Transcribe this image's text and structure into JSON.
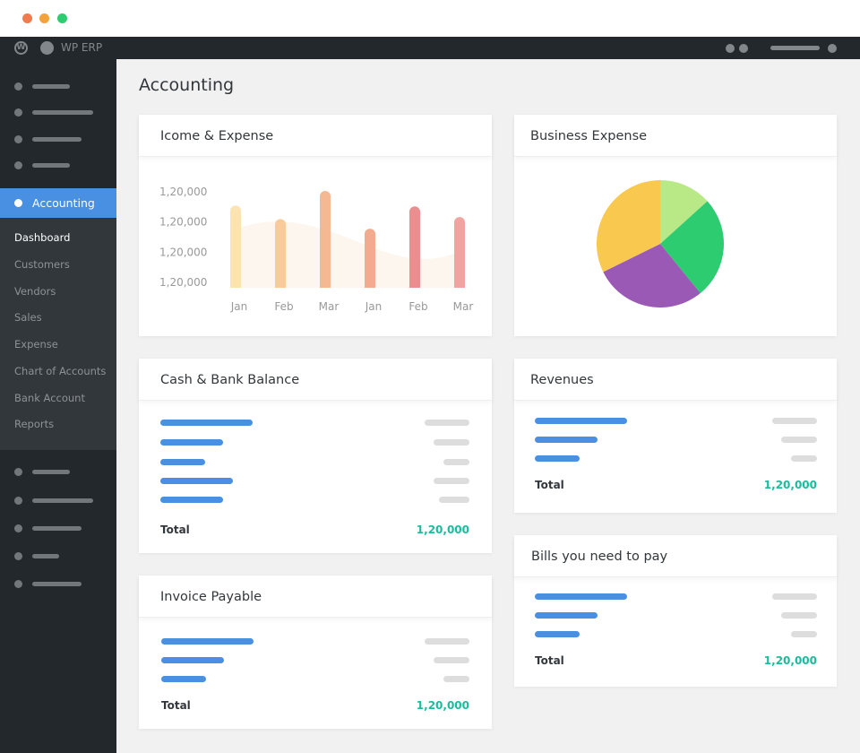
{
  "window": {
    "controls": [
      "close",
      "minimize",
      "maximize"
    ],
    "colors": {
      "close": "#f07b4f",
      "minimize": "#f2a33a",
      "maximize": "#2ecc71"
    }
  },
  "adminbar": {
    "brand": "WP ERP",
    "icons": [
      "wordpress-icon",
      "wperp-icon"
    ]
  },
  "sidebar": {
    "active": "Accounting",
    "active_color": "#4a90e2",
    "submenu": [
      "Dashboard",
      "Customers",
      "Vendors",
      "Sales",
      "Expense",
      "Chart of Accounts",
      "Bank Account",
      "Reports"
    ],
    "current_submenu": "Dashboard"
  },
  "page": {
    "title": "Accounting"
  },
  "cards": {
    "income": {
      "title": "Icome & Expense"
    },
    "business": {
      "title": "Business Expense"
    },
    "cash": {
      "title": "Cash & Bank Balance",
      "total_label": "Total",
      "total_value": "1,20,000"
    },
    "invoice": {
      "title": "Invoice Payable",
      "total_label": "Total",
      "total_value": "1,20,000"
    },
    "revenues": {
      "title": "Revenues",
      "total_label": "Total",
      "total_value": "1,20,000"
    },
    "bills": {
      "title": "Bills you need to pay",
      "total_label": "Total",
      "total_value": "1,20,000"
    }
  },
  "chart_data": [
    {
      "type": "bar",
      "title": "Icome & Expense",
      "categories": [
        "Jan",
        "Feb",
        "Mar",
        "Jan",
        "Feb",
        "Mar"
      ],
      "y_tick_labels": [
        "1,20,000",
        "1,20,000",
        "1,20,000",
        "1,20,000"
      ],
      "values_relative": [
        0.85,
        0.71,
        1.0,
        0.61,
        0.84,
        0.73
      ],
      "colors": [
        "#fde3b2",
        "#f8cb98",
        "#f4b892",
        "#f2ab8e",
        "#eb8e8f",
        "#f2a2a0"
      ],
      "grid": false
    },
    {
      "type": "pie",
      "title": "Business Expense",
      "values": [
        13.3,
        25.8,
        28.6,
        32.3
      ],
      "colors": [
        "#b8e986",
        "#2ecc71",
        "#9b59b6",
        "#f8c94e"
      ]
    }
  ]
}
